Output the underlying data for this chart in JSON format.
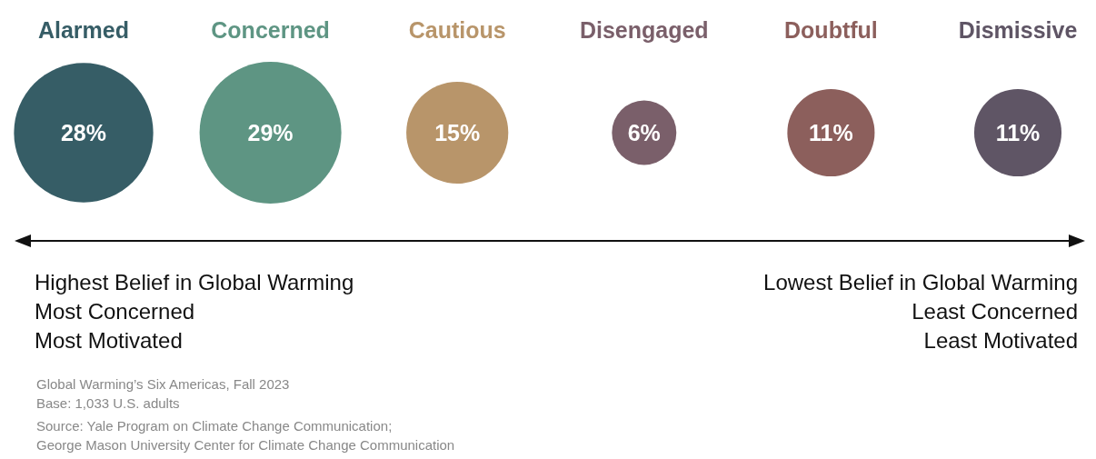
{
  "chart_data": {
    "type": "other",
    "categories": [
      "Alarmed",
      "Concerned",
      "Cautious",
      "Disengaged",
      "Doubtful",
      "Dismissive"
    ],
    "values": [
      28,
      29,
      15,
      6,
      11,
      11
    ],
    "value_labels": [
      "28%",
      "29%",
      "15%",
      "6%",
      "11%",
      "11%"
    ],
    "colors": [
      "#365d66",
      "#5e9583",
      "#b8956a",
      "#7a5f6a",
      "#8c5f5c",
      "#5f5565"
    ],
    "annotations": [
      "Highest Belief in Global Warming",
      "Most Concerned",
      "Most Motivated",
      "Lowest Belief in Global Warming",
      "Least Concerned",
      "Least Motivated",
      "Global Warming’s Six Americas, Fall 2023",
      "Base: 1,033 U.S. adults",
      "Source: Yale Program on Climate Change Communication;",
      "George Mason University Center for Climate Change Communication"
    ]
  }
}
